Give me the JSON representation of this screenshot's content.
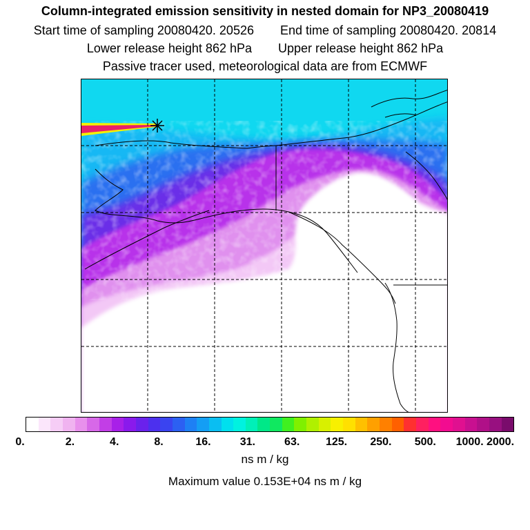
{
  "header": {
    "title": "Column-integrated emission sensitivity in nested domain for NP3_20080419",
    "start_time": "Start time of sampling 20080420. 20526",
    "end_time": "End time of sampling 20080420. 20814",
    "lower_height": "Lower release height  862 hPa",
    "upper_height": "Upper release height  862 hPa",
    "tracer_info": "Passive tracer used, meteorological data are from ECMWF"
  },
  "colorbar": {
    "tick_labels": [
      "0.",
      "2.",
      "4.",
      "8.",
      "16.",
      "31.",
      "63.",
      "125.",
      "250.",
      "500.",
      "1000.",
      "2000."
    ],
    "colors": [
      "#ffffff",
      "#fbe6fb",
      "#f6cdf6",
      "#f0b3f0",
      "#e890ec",
      "#d768e8",
      "#c23ee6",
      "#a820e8",
      "#8a1aec",
      "#6a22ec",
      "#4c30ee",
      "#3a44f0",
      "#2c60f2",
      "#1e80f4",
      "#149ef4",
      "#0abef2",
      "#00e0ee",
      "#00f2e0",
      "#00f0b8",
      "#00e888",
      "#10e860",
      "#40f020",
      "#80f000",
      "#b0f000",
      "#d8f000",
      "#f8f000",
      "#ffe000",
      "#ffc000",
      "#ffa000",
      "#ff8000",
      "#ff6000",
      "#ff3030",
      "#ff2060",
      "#ff1080",
      "#f20c90",
      "#e01090",
      "#c81090",
      "#b01088",
      "#981080",
      "#7a0c6c"
    ],
    "units": "ns m / kg"
  },
  "footer": {
    "max_value": "Maximum value  0.153E+04 ns m / kg"
  },
  "map": {
    "colors": {
      "background": "#ffffff",
      "cyan": "#10d8f0",
      "sky": "#12b8f4",
      "blue": "#2a70f0",
      "violet": "#6a2ee8",
      "purple": "#b832ea",
      "light_purple": "#e090ee",
      "pale": "#f3c8f6",
      "plume_red": "#e8206a",
      "plume_yellow": "#f4f000"
    }
  }
}
